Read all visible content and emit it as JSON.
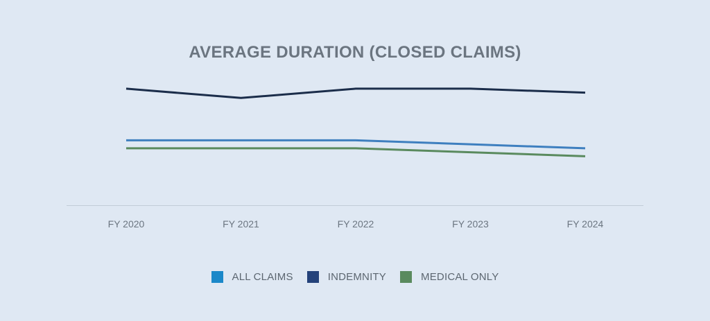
{
  "chart_data": {
    "type": "line",
    "title": "AVERAGE DURATION (CLOSED CLAIMS)",
    "categories": [
      "FY 2020",
      "FY 2021",
      "FY 2022",
      "FY 2023",
      "FY 2024"
    ],
    "ylim": [
      0,
      100
    ],
    "grid": false,
    "legend_position": "bottom",
    "series": [
      {
        "name": "ALL CLAIMS",
        "color": "#3e7fbf",
        "values": [
          49,
          49,
          49,
          46,
          43
        ]
      },
      {
        "name": "INDEMNITY",
        "color": "#1b2d4a",
        "values": [
          88,
          81,
          88,
          88,
          85
        ]
      },
      {
        "name": "MEDICAL ONLY",
        "color": "#5a8a5e",
        "values": [
          43,
          43,
          43,
          40,
          37
        ]
      }
    ],
    "legend_swatch_colors": [
      "#1b88c9",
      "#24427a",
      "#5a8a5e"
    ]
  }
}
